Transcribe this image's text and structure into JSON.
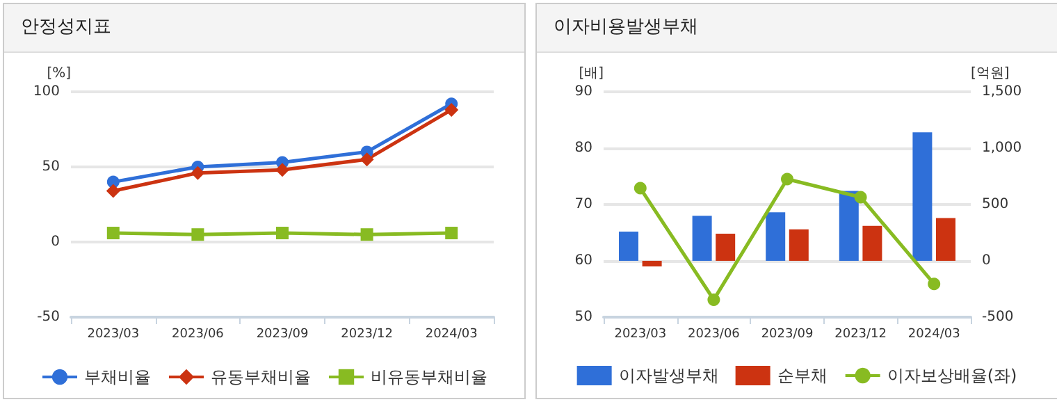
{
  "chart_data": [
    {
      "type": "line",
      "title": "안정성지표",
      "ylabel": "[%]",
      "categories": [
        "2023/03",
        "2023/06",
        "2023/09",
        "2023/12",
        "2024/03"
      ],
      "ylim": [
        -50,
        100
      ],
      "yticks": [
        -50,
        0,
        50,
        100
      ],
      "grid": "y",
      "legend": "bottom",
      "series": [
        {
          "name": "부채비율",
          "color": "#2f6fd8",
          "marker": "circle",
          "values": [
            40,
            50,
            53,
            60,
            92
          ]
        },
        {
          "name": "유동부채비율",
          "color": "#cc3311",
          "marker": "diamond",
          "values": [
            34,
            46,
            48,
            55,
            88
          ]
        },
        {
          "name": "비유동부채비율",
          "color": "#88bb22",
          "marker": "square",
          "values": [
            6,
            5,
            6,
            5,
            6
          ]
        }
      ]
    },
    {
      "type": "bar",
      "title": "이자비용발생부채",
      "ylabel": "[배]",
      "y2label": "[억원]",
      "categories": [
        "2023/03",
        "2023/06",
        "2023/09",
        "2023/12",
        "2024/03"
      ],
      "ylim": [
        50,
        90
      ],
      "yticks": [
        50,
        60,
        70,
        80,
        90
      ],
      "y2lim": [
        -500,
        1500
      ],
      "y2ticks": [
        {
          "value": -500,
          "label": "-500"
        },
        0,
        500,
        {
          "value": 1000,
          "label": "1,000"
        },
        {
          "value": 1500,
          "label": "1,500"
        }
      ],
      "grid": "y",
      "legend": "bottom",
      "series": [
        {
          "name": "이자발생부채",
          "color": "#2f6fd8",
          "axis": "y2",
          "values": [
            260,
            400,
            430,
            620,
            1140
          ]
        },
        {
          "name": "순부채",
          "color": "#cc3311",
          "axis": "y2",
          "values": [
            -50,
            240,
            280,
            310,
            380
          ]
        },
        {
          "name": "이자보상배율(좌)",
          "type": "line",
          "color": "#88bb22",
          "marker": "circle",
          "axis": "y",
          "values": [
            72.9,
            53.1,
            74.5,
            71.3,
            55.9
          ]
        }
      ]
    }
  ]
}
